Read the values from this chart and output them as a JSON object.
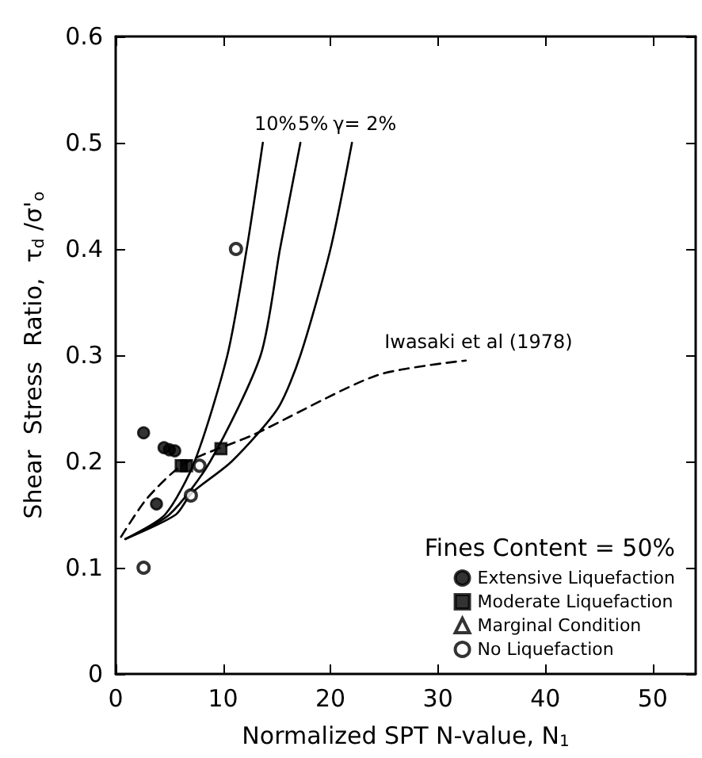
{
  "chart_data": {
    "type": "scatter",
    "xlabel": "Normalized SPT N-value, N$_{1}$",
    "ylabel": "Shear  Stress  Ratio,  τ$_{d}$ /σ'$_{o}$",
    "legend_title": "Fines Content = 50%",
    "legend": "bottom right",
    "grid": false,
    "xlim": [
      0,
      54
    ],
    "xticks": [
      0,
      10,
      20,
      30,
      40,
      50
    ],
    "ylim": [
      0,
      0.6
    ],
    "yticks": [
      0,
      0.1,
      0.2,
      0.3,
      0.4,
      0.5,
      0.6
    ],
    "series": [
      {
        "name": "Extensive Liquefaction",
        "color": "#000000",
        "marker": "circle",
        "x": [
          2.6,
          4.5,
          5.0,
          5.5,
          3.8
        ],
        "values": [
          0.227,
          0.213,
          0.211,
          0.21,
          0.16
        ]
      },
      {
        "name": "Moderate Liquefaction",
        "color": "#000000",
        "marker": "square",
        "x": [
          6.1,
          6.6,
          9.8
        ],
        "values": [
          0.196,
          0.196,
          0.212
        ]
      },
      {
        "name": "Marginal Condition",
        "color": "#000000",
        "marker": "open triangle"
      },
      {
        "name": "No Liquefaction",
        "color": "#000000",
        "marker": "open circle",
        "x": [
          2.6,
          7.0,
          7.8,
          11.2
        ],
        "values": [
          0.1,
          0.168,
          0.196,
          0.4
        ]
      },
      {
        "name": "10%",
        "type": "line",
        "color": "#000000",
        "marker": "none",
        "line_style": "solid",
        "x": [
          0.9,
          4.6,
          7.35,
          10.4,
          12.2,
          13.7
        ],
        "values": [
          0.127,
          0.15,
          0.2,
          0.3,
          0.4,
          0.5
        ]
      },
      {
        "name": "5%",
        "type": "line",
        "color": "#000000",
        "marker": "none",
        "line_style": "solid",
        "x": [
          0.9,
          5.0,
          8.8,
          13.5,
          15.3,
          17.2
        ],
        "values": [
          0.127,
          0.15,
          0.2,
          0.3,
          0.4,
          0.5
        ]
      },
      {
        "name": "γ= 2%",
        "type": "line",
        "color": "#000000",
        "marker": "none",
        "line_style": "solid",
        "x": [
          0.9,
          5.6,
          7.05,
          10.8,
          15.1,
          17.2,
          20.0,
          22.0
        ],
        "values": [
          0.127,
          0.15,
          0.17,
          0.2,
          0.25,
          0.3,
          0.4,
          0.5
        ]
      },
      {
        "name": "Iwasaki et al (1978)",
        "type": "line",
        "color": "#000000",
        "marker": "none",
        "line_style": "dashed",
        "x": [
          0.5,
          2.9,
          6.4,
          12.8,
          24.3,
          32.6
        ],
        "values": [
          0.129,
          0.165,
          0.198,
          0.225,
          0.281,
          0.295
        ]
      }
    ]
  }
}
